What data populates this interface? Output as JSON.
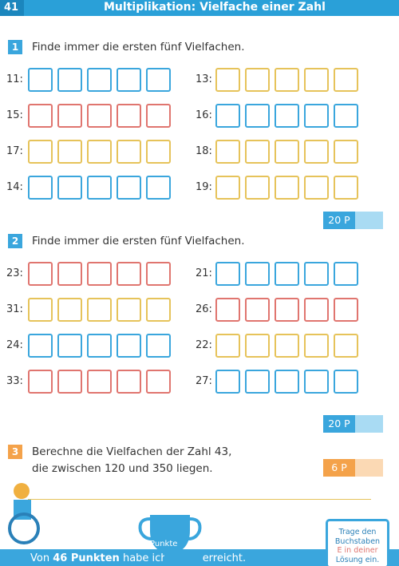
{
  "header": {
    "page": "41",
    "title": "Multiplikation: Vielfache einer Zahl"
  },
  "exercises": [
    {
      "number": "1",
      "instruction": "Finde immer die ersten fünf Vielfachen.",
      "points": "20 P",
      "left": [
        {
          "label": "11:",
          "color": "#3aa6dd"
        },
        {
          "label": "15:",
          "color": "#e0756f"
        },
        {
          "label": "17:",
          "color": "#e6c35a"
        },
        {
          "label": "14:",
          "color": "#3aa6dd"
        }
      ],
      "right": [
        {
          "label": "13:",
          "color": "#e6c35a"
        },
        {
          "label": "16:",
          "color": "#3aa6dd"
        },
        {
          "label": "18:",
          "color": "#e6c35a"
        },
        {
          "label": "19:",
          "color": "#e6c35a"
        }
      ]
    },
    {
      "number": "2",
      "instruction": "Finde immer die ersten fünf Vielfachen.",
      "points": "20 P",
      "left": [
        {
          "label": "23:",
          "color": "#e0756f"
        },
        {
          "label": "31:",
          "color": "#e6c35a"
        },
        {
          "label": "24:",
          "color": "#3aa6dd"
        },
        {
          "label": "33:",
          "color": "#e0756f"
        }
      ],
      "right": [
        {
          "label": "21:",
          "color": "#3aa6dd"
        },
        {
          "label": "26:",
          "color": "#e0756f"
        },
        {
          "label": "22:",
          "color": "#e6c35a"
        },
        {
          "label": "27:",
          "color": "#3aa6dd"
        }
      ]
    },
    {
      "number": "3",
      "lines": [
        "Berechne die Vielfachen der Zahl 43,",
        "die zwischen 120 und 350 liegen."
      ],
      "points": "6 P"
    }
  ],
  "footer": {
    "trophy": "Punkte",
    "prefix": "Von",
    "points": "46 Punkten",
    "middle": "habe ich",
    "suffix": "erreicht.",
    "note": [
      "Trage den",
      "Buchstaben",
      "E in deiner",
      "Lösung ein."
    ]
  }
}
